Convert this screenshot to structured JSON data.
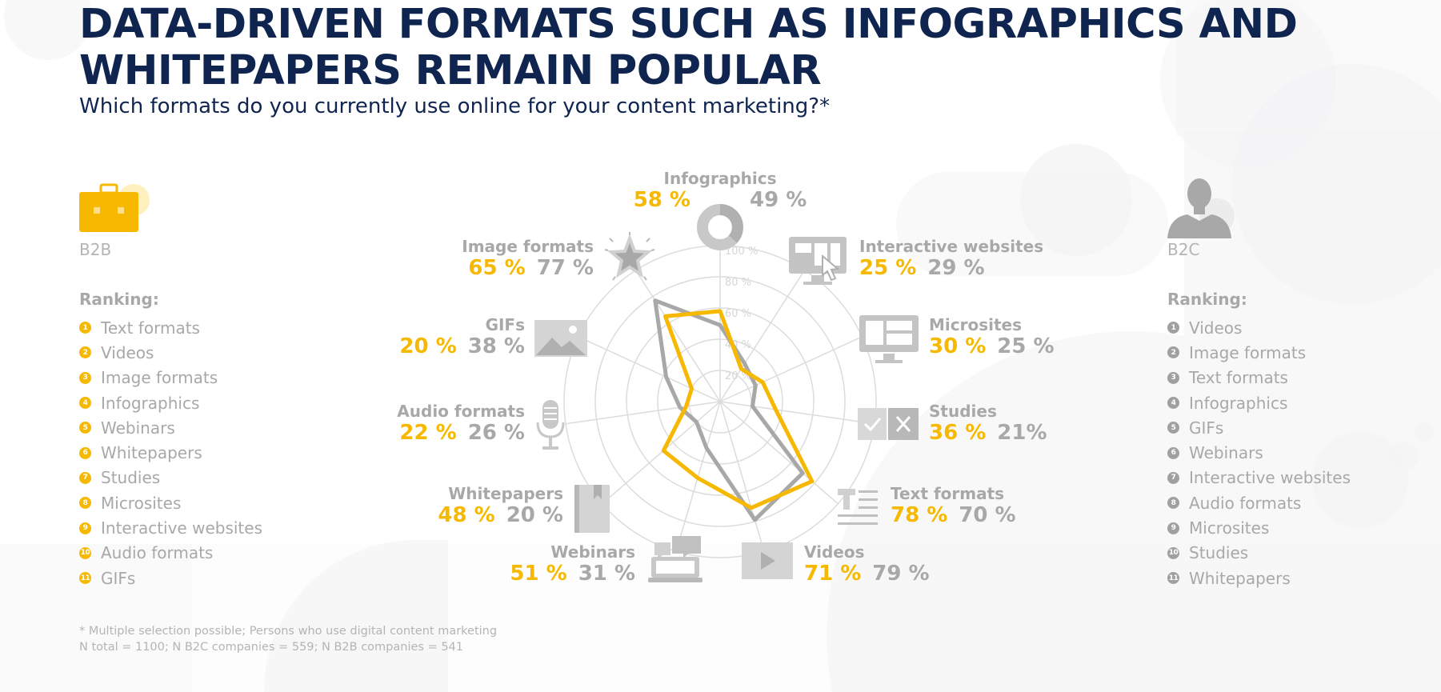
{
  "header": {
    "title": "DATA-DRIVEN FORMATS SUCH AS INFOGRAPHICS AND WHITEPAPERS REMAIN POPULAR",
    "subtitle": "Which formats do you currently use online for your content marketing?*"
  },
  "b2b": {
    "label": "B2B",
    "ranking_title": "Ranking:",
    "ranking": [
      "Text formats",
      "Videos",
      "Image formats",
      "Infographics",
      "Webinars",
      "Whitepapers",
      "Studies",
      "Microsites",
      "Interactive websites",
      "Audio formats",
      "GIFs"
    ]
  },
  "b2c": {
    "label": "B2C",
    "ranking_title": "Ranking:",
    "ranking": [
      "Videos",
      "Image formats",
      "Text formats",
      "Infographics",
      "GIFs",
      "Webinars",
      "Interactive websites",
      "Audio formats",
      "Microsites",
      "Studies",
      "Whitepapers"
    ]
  },
  "chart_data": {
    "type": "radar",
    "title": "DATA-DRIVEN FORMATS SUCH AS INFOGRAPHICS AND WHITEPAPERS REMAIN POPULAR",
    "subtitle": "Which formats do you currently use online for your content marketing?*",
    "rlim": [
      0,
      100
    ],
    "tick_labels": [
      "20 %",
      "40 %",
      "60 %",
      "80 %",
      "100 %"
    ],
    "categories": [
      "Infographics",
      "Interactive websites",
      "Microsites",
      "Studies",
      "Text formats",
      "Videos",
      "Webinars",
      "Whitepapers",
      "Audio formats",
      "GIFs",
      "Image formats"
    ],
    "value_labels": {
      "b2b": [
        "58 %",
        "25 %",
        "30 %",
        "36 %",
        "78 %",
        "71 %",
        "51 %",
        "48 %",
        "22 %",
        "20 %",
        "65 %"
      ],
      "b2c": [
        "49 %",
        "29 %",
        "25 %",
        "21%",
        "70 %",
        "79 %",
        "31 %",
        "20 %",
        "26 %",
        "38 %",
        "77 %"
      ]
    },
    "series": [
      {
        "name": "B2B",
        "color": "#f6b800",
        "values": [
          58,
          25,
          30,
          36,
          78,
          71,
          51,
          48,
          22,
          20,
          65
        ]
      },
      {
        "name": "B2C",
        "color": "#a8a8a8",
        "values": [
          49,
          29,
          25,
          21,
          70,
          79,
          31,
          20,
          26,
          38,
          77
        ]
      }
    ],
    "icons": [
      "donut-icon",
      "interactive-website-icon",
      "microsite-icon",
      "studies-icon",
      "text-format-icon",
      "video-play-icon",
      "webinar-icon",
      "whitepaper-book-icon",
      "microphone-icon",
      "image-icon",
      "star-icon"
    ],
    "grid": true
  },
  "footnote": {
    "line1": "* Multiple selection possible; Persons who use digital content marketing",
    "line2": "N total = 1100; N B2C companies = 559; N B2B companies = 541"
  }
}
